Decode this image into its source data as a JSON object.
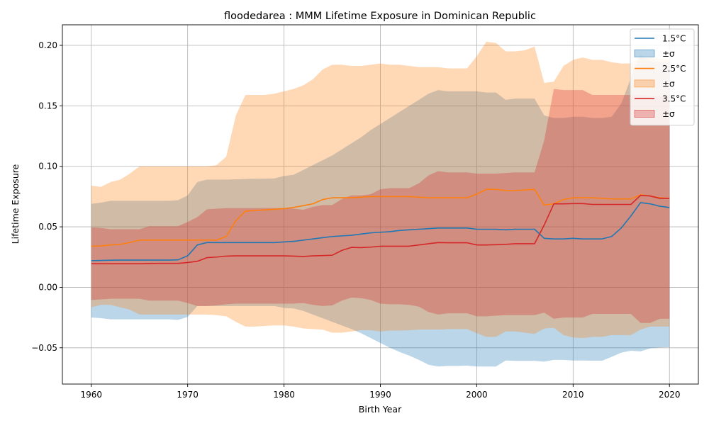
{
  "chart_data": {
    "type": "area",
    "title": "floodedarea : MMM Lifetime Exposure in Dominican Republic",
    "xlabel": "Birth Year",
    "ylabel": "Lifetime Exposure",
    "xlim": [
      1957,
      2023
    ],
    "ylim": [
      -0.08,
      0.217
    ],
    "xticks": [
      1960,
      1970,
      1980,
      1990,
      2000,
      2010,
      2020
    ],
    "xtick_labels": [
      "1960",
      "1970",
      "1980",
      "1990",
      "2000",
      "2010",
      "2020"
    ],
    "yticks": [
      -0.05,
      0.0,
      0.05,
      0.1,
      0.15,
      0.2
    ],
    "ytick_labels": [
      "−0.05",
      "0.00",
      "0.05",
      "0.10",
      "0.15",
      "0.20"
    ],
    "grid": true,
    "legend_position": "top-right",
    "x": [
      1960,
      1961,
      1962,
      1963,
      1964,
      1965,
      1966,
      1967,
      1968,
      1969,
      1970,
      1971,
      1972,
      1973,
      1974,
      1975,
      1976,
      1977,
      1978,
      1979,
      1980,
      1981,
      1982,
      1983,
      1984,
      1985,
      1986,
      1987,
      1988,
      1989,
      1990,
      1991,
      1992,
      1993,
      1994,
      1995,
      1996,
      1997,
      1998,
      1999,
      2000,
      2001,
      2002,
      2003,
      2004,
      2005,
      2006,
      2007,
      2008,
      2009,
      2010,
      2011,
      2012,
      2013,
      2014,
      2015,
      2016,
      2017,
      2018,
      2019,
      2020
    ],
    "series": [
      {
        "name": "1.5°C",
        "band_label": "±σ",
        "color": "#1f77b4",
        "band_color": "#1f77b4",
        "mean": [
          0.022,
          0.0222,
          0.0224,
          0.0225,
          0.0225,
          0.0225,
          0.0225,
          0.0225,
          0.0225,
          0.0227,
          0.026,
          0.035,
          0.037,
          0.037,
          0.037,
          0.037,
          0.037,
          0.037,
          0.037,
          0.037,
          0.0375,
          0.038,
          0.039,
          0.04,
          0.041,
          0.042,
          0.0425,
          0.043,
          0.044,
          0.045,
          0.0455,
          0.046,
          0.047,
          0.0475,
          0.048,
          0.0485,
          0.049,
          0.049,
          0.049,
          0.049,
          0.048,
          0.048,
          0.048,
          0.0475,
          0.048,
          0.048,
          0.048,
          0.0405,
          0.04,
          0.04,
          0.0405,
          0.04,
          0.04,
          0.04,
          0.042,
          0.049,
          0.059,
          0.07,
          0.069,
          0.067,
          0.066
        ],
        "upper": [
          0.069,
          0.07,
          0.0715,
          0.0715,
          0.0715,
          0.0715,
          0.0715,
          0.0715,
          0.0715,
          0.072,
          0.076,
          0.087,
          0.089,
          0.089,
          0.089,
          0.0893,
          0.0895,
          0.0897,
          0.0898,
          0.09,
          0.092,
          0.093,
          0.097,
          0.101,
          0.105,
          0.109,
          0.114,
          0.119,
          0.124,
          0.13,
          0.135,
          0.14,
          0.145,
          0.15,
          0.155,
          0.16,
          0.163,
          0.162,
          0.162,
          0.162,
          0.162,
          0.161,
          0.161,
          0.155,
          0.156,
          0.156,
          0.156,
          0.142,
          0.14,
          0.14,
          0.141,
          0.141,
          0.14,
          0.14,
          0.141,
          0.152,
          0.173,
          0.193,
          0.187,
          0.186,
          0.186
        ],
        "lower": [
          -0.025,
          -0.0255,
          -0.0265,
          -0.0265,
          -0.0265,
          -0.0265,
          -0.0265,
          -0.0265,
          -0.0265,
          -0.027,
          -0.0245,
          -0.0155,
          -0.0155,
          -0.0155,
          -0.0155,
          -0.0155,
          -0.0155,
          -0.0155,
          -0.0155,
          -0.0155,
          -0.017,
          -0.0175,
          -0.0195,
          -0.0225,
          -0.0255,
          -0.0285,
          -0.0315,
          -0.0345,
          -0.038,
          -0.042,
          -0.046,
          -0.05,
          -0.0535,
          -0.0565,
          -0.06,
          -0.064,
          -0.0655,
          -0.065,
          -0.065,
          -0.0648,
          -0.0655,
          -0.0655,
          -0.0655,
          -0.0605,
          -0.0608,
          -0.0608,
          -0.0608,
          -0.0615,
          -0.06,
          -0.06,
          -0.0605,
          -0.0605,
          -0.0607,
          -0.0607,
          -0.0575,
          -0.054,
          -0.0525,
          -0.053,
          -0.0505,
          -0.0497,
          -0.0495
        ]
      },
      {
        "name": "2.5°C",
        "band_label": "±σ",
        "color": "#ff7f0e",
        "band_color": "#ff7f0e",
        "mean": [
          0.034,
          0.0342,
          0.035,
          0.0355,
          0.037,
          0.039,
          0.039,
          0.039,
          0.039,
          0.039,
          0.039,
          0.039,
          0.039,
          0.039,
          0.042,
          0.055,
          0.063,
          0.0635,
          0.064,
          0.0645,
          0.065,
          0.066,
          0.0675,
          0.069,
          0.0725,
          0.074,
          0.074,
          0.074,
          0.0745,
          0.075,
          0.075,
          0.075,
          0.075,
          0.075,
          0.0745,
          0.074,
          0.074,
          0.074,
          0.074,
          0.074,
          0.077,
          0.081,
          0.081,
          0.08,
          0.08,
          0.0805,
          0.081,
          0.068,
          0.069,
          0.0725,
          0.074,
          0.074,
          0.074,
          0.0735,
          0.073,
          0.073,
          0.073,
          0.0765,
          0.0755,
          0.074,
          0.0735
        ],
        "upper": [
          0.084,
          0.083,
          0.087,
          0.089,
          0.094,
          0.1,
          0.1,
          0.1,
          0.1,
          0.1,
          0.1,
          0.1,
          0.1,
          0.101,
          0.108,
          0.142,
          0.159,
          0.159,
          0.159,
          0.16,
          0.162,
          0.164,
          0.167,
          0.172,
          0.18,
          0.184,
          0.184,
          0.183,
          0.183,
          0.184,
          0.185,
          0.184,
          0.184,
          0.183,
          0.182,
          0.182,
          0.182,
          0.181,
          0.181,
          0.181,
          0.191,
          0.203,
          0.202,
          0.195,
          0.195,
          0.196,
          0.199,
          0.169,
          0.17,
          0.183,
          0.188,
          0.19,
          0.188,
          0.188,
          0.186,
          0.185,
          0.185,
          0.19,
          0.19,
          0.189,
          0.188
        ],
        "lower": [
          -0.0165,
          -0.0145,
          -0.0145,
          -0.0165,
          -0.0185,
          -0.0225,
          -0.0225,
          -0.0225,
          -0.0225,
          -0.0225,
          -0.0225,
          -0.0225,
          -0.0225,
          -0.023,
          -0.024,
          -0.0285,
          -0.0325,
          -0.0325,
          -0.032,
          -0.0315,
          -0.0315,
          -0.0325,
          -0.034,
          -0.0345,
          -0.035,
          -0.0375,
          -0.0375,
          -0.0365,
          -0.0355,
          -0.0355,
          -0.0365,
          -0.0358,
          -0.0358,
          -0.0355,
          -0.035,
          -0.035,
          -0.035,
          -0.0345,
          -0.0345,
          -0.0345,
          -0.038,
          -0.041,
          -0.041,
          -0.0365,
          -0.0365,
          -0.0375,
          -0.0385,
          -0.034,
          -0.0335,
          -0.0395,
          -0.0415,
          -0.042,
          -0.041,
          -0.041,
          -0.0395,
          -0.0395,
          -0.0395,
          -0.035,
          -0.0325,
          -0.0325,
          -0.0325
        ]
      },
      {
        "name": "3.5°C",
        "band_label": "±σ",
        "color": "#d62728",
        "band_color": "#d62728",
        "mean": [
          0.0195,
          0.0195,
          0.0195,
          0.0195,
          0.0195,
          0.0195,
          0.0197,
          0.0198,
          0.0198,
          0.0198,
          0.0205,
          0.0215,
          0.0245,
          0.025,
          0.0258,
          0.026,
          0.026,
          0.026,
          0.026,
          0.026,
          0.026,
          0.0258,
          0.0255,
          0.026,
          0.0262,
          0.0265,
          0.0305,
          0.033,
          0.0328,
          0.0332,
          0.034,
          0.034,
          0.034,
          0.034,
          0.035,
          0.036,
          0.037,
          0.0368,
          0.0368,
          0.0368,
          0.035,
          0.035,
          0.0352,
          0.0355,
          0.036,
          0.036,
          0.036,
          0.0515,
          0.069,
          0.069,
          0.0692,
          0.0692,
          0.0685,
          0.0685,
          0.0685,
          0.0685,
          0.0685,
          0.076,
          0.0755,
          0.0735,
          0.0735
        ],
        "upper": [
          0.0495,
          0.049,
          0.048,
          0.048,
          0.048,
          0.048,
          0.0505,
          0.0505,
          0.0505,
          0.0505,
          0.054,
          0.058,
          0.0645,
          0.065,
          0.0655,
          0.0655,
          0.0655,
          0.0655,
          0.0655,
          0.0655,
          0.0655,
          0.065,
          0.064,
          0.0665,
          0.068,
          0.068,
          0.073,
          0.076,
          0.076,
          0.077,
          0.081,
          0.082,
          0.082,
          0.082,
          0.086,
          0.0925,
          0.096,
          0.095,
          0.095,
          0.095,
          0.094,
          0.094,
          0.094,
          0.0945,
          0.095,
          0.095,
          0.095,
          0.1215,
          0.164,
          0.163,
          0.163,
          0.163,
          0.159,
          0.159,
          0.159,
          0.159,
          0.159,
          0.159,
          0.158,
          0.158,
          0.158
        ],
        "lower": [
          -0.0105,
          -0.01,
          -0.0095,
          -0.0095,
          -0.0095,
          -0.0095,
          -0.011,
          -0.011,
          -0.011,
          -0.011,
          -0.013,
          -0.0155,
          -0.0155,
          -0.015,
          -0.014,
          -0.0135,
          -0.0135,
          -0.0135,
          -0.0135,
          -0.0135,
          -0.0135,
          -0.0135,
          -0.013,
          -0.0145,
          -0.0155,
          -0.015,
          -0.011,
          -0.0085,
          -0.009,
          -0.0105,
          -0.0135,
          -0.014,
          -0.014,
          -0.0145,
          -0.016,
          -0.0205,
          -0.0225,
          -0.0215,
          -0.0215,
          -0.0215,
          -0.024,
          -0.024,
          -0.0235,
          -0.023,
          -0.023,
          -0.023,
          -0.023,
          -0.021,
          -0.026,
          -0.025,
          -0.025,
          -0.025,
          -0.022,
          -0.022,
          -0.022,
          -0.022,
          -0.022,
          -0.0295,
          -0.0295,
          -0.026,
          -0.026
        ]
      }
    ]
  }
}
